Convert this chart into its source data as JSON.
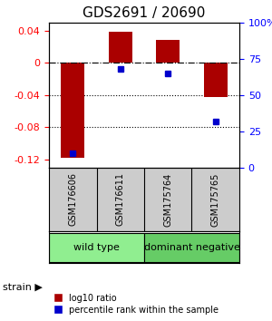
{
  "title": "GDS2691 / 20690",
  "samples": [
    "GSM176606",
    "GSM176611",
    "GSM175764",
    "GSM175765"
  ],
  "log10_ratio": [
    -0.118,
    0.038,
    0.028,
    -0.043
  ],
  "percentile_rank": [
    10,
    68,
    65,
    32
  ],
  "groups": [
    {
      "label": "wild type",
      "color": "#90EE90",
      "samples": [
        0,
        1
      ]
    },
    {
      "label": "dominant negative",
      "color": "#66CC66",
      "samples": [
        2,
        3
      ]
    }
  ],
  "bar_color": "#AA0000",
  "dot_color": "#0000CC",
  "ylim_left": [
    -0.13,
    0.05
  ],
  "ylim_right": [
    0,
    100
  ],
  "left_ticks": [
    0.04,
    0,
    -0.04,
    -0.08,
    -0.12
  ],
  "right_ticks": [
    100,
    75,
    50,
    25,
    0
  ],
  "hline_y": 0,
  "dotted_lines": [
    -0.04,
    -0.08
  ],
  "bar_width": 0.5,
  "label_red": "log10 ratio",
  "label_blue": "percentile rank within the sample",
  "strain_label": "strain",
  "background_color": "#ffffff",
  "sample_box_color": "#CCCCCC",
  "sample_box_border": "#000000"
}
